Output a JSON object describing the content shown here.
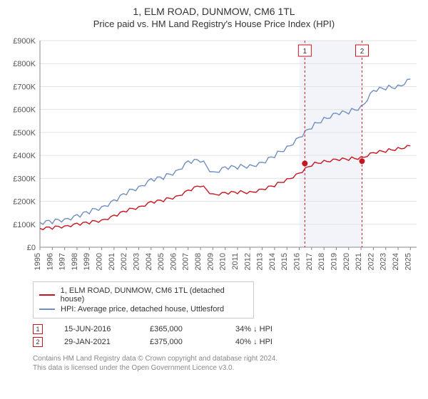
{
  "title": "1, ELM ROAD, DUNMOW, CM6 1TL",
  "subtitle": "Price paid vs. HM Land Registry's House Price Index (HPI)",
  "chart": {
    "type": "line",
    "xlim": [
      1995,
      2025.5
    ],
    "ylim": [
      0,
      900
    ],
    "ytick_step": 100,
    "ytick_prefix": "£",
    "ytick_suffix": "K",
    "years": [
      1995,
      1996,
      1997,
      1998,
      1999,
      2000,
      2001,
      2002,
      2003,
      2004,
      2005,
      2006,
      2007,
      2008,
      2009,
      2010,
      2011,
      2012,
      2013,
      2014,
      2015,
      2016,
      2017,
      2018,
      2019,
      2020,
      2021,
      2022,
      2023,
      2024,
      2025
    ],
    "background_color": "#ffffff",
    "grid_color": "#e2e2e2",
    "axis_color": "#888888",
    "text_color": "#555555",
    "band": {
      "from": 2016,
      "to": 2021,
      "fill": "#a6b8d6"
    },
    "series": [
      {
        "name": "property",
        "color": "#c71520",
        "values": [
          82,
          85,
          92,
          100,
          108,
          118,
          135,
          160,
          175,
          195,
          205,
          220,
          245,
          270,
          230,
          235,
          240,
          240,
          250,
          270,
          295,
          320,
          360,
          375,
          380,
          385,
          390,
          410,
          420,
          430,
          440
        ]
      },
      {
        "name": "hpi",
        "color": "#6f8fc0",
        "values": [
          108,
          112,
          122,
          135,
          155,
          175,
          200,
          238,
          262,
          292,
          305,
          330,
          370,
          380,
          325,
          345,
          350,
          355,
          365,
          400,
          435,
          475,
          525,
          560,
          580,
          590,
          610,
          680,
          695,
          700,
          730
        ]
      }
    ]
  },
  "events": [
    {
      "x": 2016.45,
      "label": "1"
    },
    {
      "x": 2021.08,
      "label": "2"
    }
  ],
  "sale_points": [
    {
      "x": 2016.45,
      "y": 365,
      "color": "#c71520"
    },
    {
      "x": 2021.08,
      "y": 375,
      "color": "#c71520"
    }
  ],
  "legend": {
    "items": [
      {
        "color": "#c71520",
        "label": "1, ELM ROAD, DUNMOW, CM6 1TL (detached house)"
      },
      {
        "color": "#6f8fc0",
        "label": "HPI: Average price, detached house, Uttlesford"
      }
    ]
  },
  "sales": [
    {
      "marker": "1",
      "date": "15-JUN-2016",
      "price": "£365,000",
      "pct": "34% ↓ HPI"
    },
    {
      "marker": "2",
      "date": "29-JAN-2021",
      "price": "£375,000",
      "pct": "40% ↓ HPI"
    }
  ],
  "marker_color": "#c71520",
  "footer1": "Contains HM Land Registry data © Crown copyright and database right 2024.",
  "footer2": "This data is licensed under the Open Government Licence v3.0."
}
